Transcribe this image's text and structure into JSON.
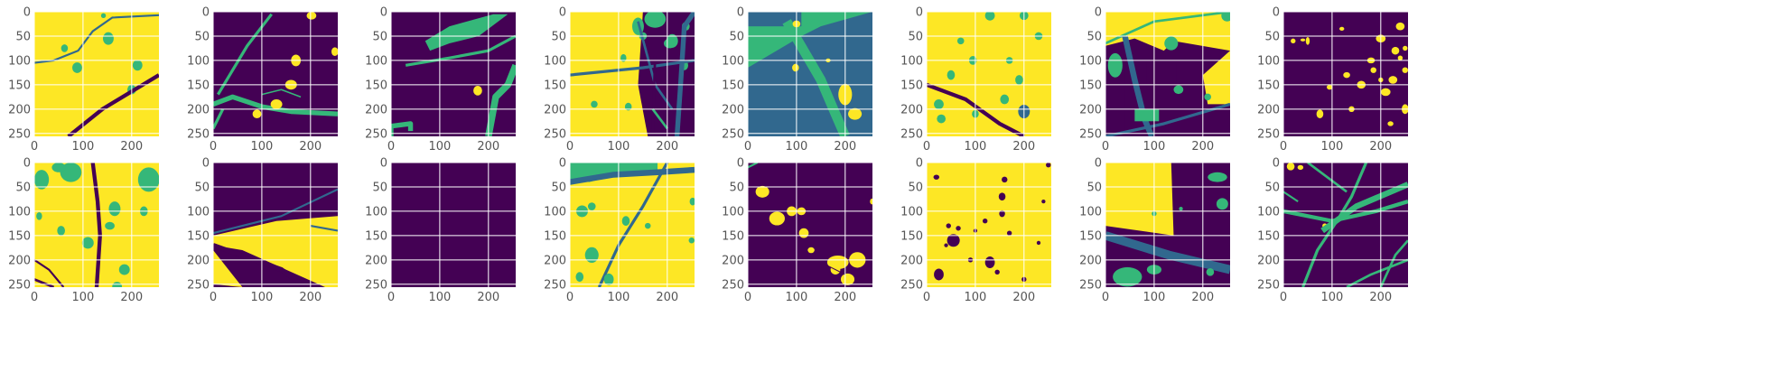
{
  "figure": {
    "background": "#ffffff",
    "palette": {
      "class0": "#440154",
      "class1": "#31688e",
      "class2": "#35b779",
      "class3": "#fde725",
      "grid": "#ffffff",
      "tick_text": "#555555"
    },
    "rows": 2,
    "cols": 8,
    "x_ticks": [
      "0",
      "100",
      "200"
    ],
    "y_ticks": [
      "0",
      "50",
      "100",
      "150",
      "200",
      "250"
    ]
  },
  "chart_data": {
    "type": "heatmap",
    "description_units": "segmentation masks, 256x256 pixels, 4 classes (0 dark purple, 1 blue, 2 green, 3 yellow)",
    "xlim": [
      0,
      256
    ],
    "ylim": [
      256,
      0
    ],
    "grid": true,
    "panels": [
      {
        "row": 0,
        "col": 0
      },
      {
        "row": 0,
        "col": 1
      },
      {
        "row": 0,
        "col": 2
      },
      {
        "row": 0,
        "col": 3
      },
      {
        "row": 0,
        "col": 4
      },
      {
        "row": 0,
        "col": 5
      },
      {
        "row": 0,
        "col": 6
      },
      {
        "row": 0,
        "col": 7
      },
      {
        "row": 1,
        "col": 0
      },
      {
        "row": 1,
        "col": 1
      },
      {
        "row": 1,
        "col": 2
      },
      {
        "row": 1,
        "col": 3
      },
      {
        "row": 1,
        "col": 4
      },
      {
        "row": 1,
        "col": 5
      },
      {
        "row": 1,
        "col": 6
      },
      {
        "row": 1,
        "col": 7
      }
    ]
  }
}
